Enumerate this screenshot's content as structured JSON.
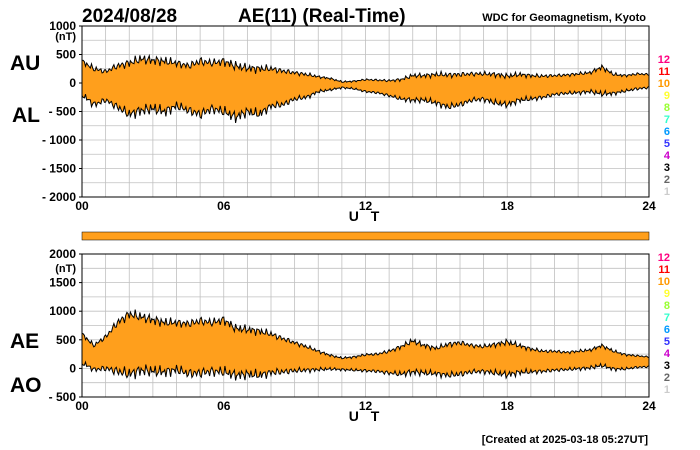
{
  "title": {
    "date": "2024/08/28",
    "main": "AE(11) (Real-Time)",
    "source": "WDC for Geomagnetism, Kyoto"
  },
  "footer": "[Created at 2025-03-18 05:27UT]",
  "legend_numbers": [
    {
      "label": "12",
      "color": "#ff0080"
    },
    {
      "label": "11",
      "color": "#ff0000"
    },
    {
      "label": "10",
      "color": "#ff9900"
    },
    {
      "label": "9",
      "color": "#ffff33"
    },
    {
      "label": "8",
      "color": "#99ff33"
    },
    {
      "label": "7",
      "color": "#33ffcc"
    },
    {
      "label": "6",
      "color": "#0099ff"
    },
    {
      "label": "5",
      "color": "#3333ff"
    },
    {
      "label": "4",
      "color": "#cc00cc"
    },
    {
      "label": "3",
      "color": "#000000"
    },
    {
      "label": "2",
      "color": "#666666"
    },
    {
      "label": "1",
      "color": "#cccccc"
    }
  ],
  "colors": {
    "fill": "#ff9f1c",
    "bar": "#ff9f1c",
    "line": "#000000",
    "grid": "#c0c0c0"
  },
  "chart_data": [
    {
      "type": "area",
      "name": "AU/AL",
      "side_labels": [
        "AU",
        "AL"
      ],
      "unit": "(nT)",
      "ylim": [
        -2000,
        1000
      ],
      "yticks": [
        "1000",
        "500",
        "0",
        "- 500",
        "- 1000",
        "- 1500",
        "- 2000"
      ],
      "ytick_values": [
        1000,
        500,
        0,
        -500,
        -1000,
        -1500,
        -2000
      ],
      "xlim": [
        0,
        24
      ],
      "xticks": [
        "00",
        "06",
        "12",
        "18",
        "24"
      ],
      "xlabel": "U T",
      "grid": true,
      "x": [
        0,
        0.5,
        1,
        1.5,
        2,
        2.5,
        3,
        3.5,
        4,
        4.5,
        5,
        5.5,
        6,
        6.5,
        7,
        7.5,
        8,
        8.5,
        9,
        9.5,
        10,
        10.5,
        11,
        11.5,
        12,
        12.5,
        13,
        13.5,
        14,
        14.5,
        15,
        15.5,
        16,
        16.5,
        17,
        17.5,
        18,
        18.5,
        19,
        19.5,
        20,
        20.5,
        21,
        21.5,
        22,
        22.5,
        23,
        23.5,
        24
      ],
      "series": [
        {
          "name": "AU",
          "values": [
            380,
            250,
            200,
            300,
            350,
            420,
            400,
            380,
            350,
            300,
            380,
            350,
            380,
            300,
            260,
            250,
            250,
            210,
            180,
            150,
            110,
            80,
            20,
            30,
            60,
            50,
            40,
            60,
            130,
            130,
            150,
            140,
            150,
            160,
            160,
            150,
            120,
            150,
            130,
            120,
            130,
            140,
            160,
            180,
            280,
            150,
            130,
            160,
            150
          ]
        },
        {
          "name": "AL",
          "values": [
            -200,
            -380,
            -300,
            -420,
            -550,
            -480,
            -450,
            -500,
            -400,
            -480,
            -550,
            -450,
            -500,
            -600,
            -500,
            -550,
            -400,
            -380,
            -280,
            -250,
            -150,
            -120,
            -80,
            -100,
            -150,
            -170,
            -220,
            -280,
            -300,
            -300,
            -350,
            -420,
            -380,
            -300,
            -280,
            -350,
            -380,
            -300,
            -280,
            -250,
            -200,
            -180,
            -170,
            -150,
            -190,
            -180,
            -140,
            -100,
            -80
          ]
        }
      ]
    },
    {
      "type": "area",
      "name": "AE/AO",
      "side_labels": [
        "AE",
        "AO"
      ],
      "unit": "(nT)",
      "ylim": [
        -500,
        2000
      ],
      "yticks": [
        "2000",
        "1500",
        "1000",
        "500",
        "0",
        "- 500"
      ],
      "ytick_values": [
        2000,
        1500,
        1000,
        500,
        0,
        -500
      ],
      "xlim": [
        0,
        24
      ],
      "xticks": [
        "00",
        "06",
        "12",
        "18",
        "24"
      ],
      "xlabel": "U T",
      "grid": true,
      "x": [
        0,
        0.5,
        1,
        1.5,
        2,
        2.5,
        3,
        3.5,
        4,
        4.5,
        5,
        5.5,
        6,
        6.5,
        7,
        7.5,
        8,
        8.5,
        9,
        9.5,
        10,
        10.5,
        11,
        11.5,
        12,
        12.5,
        13,
        13.5,
        14,
        14.5,
        15,
        15.5,
        16,
        16.5,
        17,
        17.5,
        18,
        18.5,
        19,
        19.5,
        20,
        20.5,
        21,
        21.5,
        22,
        22.5,
        23,
        23.5,
        24
      ],
      "series": [
        {
          "name": "AE",
          "values": [
            600,
            400,
            550,
            800,
            950,
            900,
            850,
            800,
            800,
            780,
            830,
            800,
            850,
            700,
            680,
            650,
            600,
            520,
            450,
            380,
            300,
            230,
            180,
            200,
            240,
            250,
            300,
            380,
            480,
            400,
            350,
            420,
            450,
            400,
            380,
            420,
            460,
            400,
            340,
            300,
            300,
            280,
            300,
            320,
            400,
            300,
            240,
            220,
            200
          ]
        },
        {
          "name": "AO",
          "values": [
            100,
            -20,
            0,
            -50,
            -100,
            -30,
            -50,
            -60,
            -20,
            -90,
            -80,
            -50,
            -60,
            -120,
            -100,
            -120,
            -70,
            -60,
            -40,
            -30,
            -20,
            -10,
            -20,
            -30,
            -40,
            -50,
            -80,
            -100,
            -60,
            -80,
            -90,
            -120,
            -100,
            -60,
            -50,
            -80,
            -110,
            -70,
            -60,
            -50,
            -30,
            -20,
            -5,
            10,
            50,
            -10,
            -10,
            20,
            30
          ]
        }
      ]
    }
  ]
}
